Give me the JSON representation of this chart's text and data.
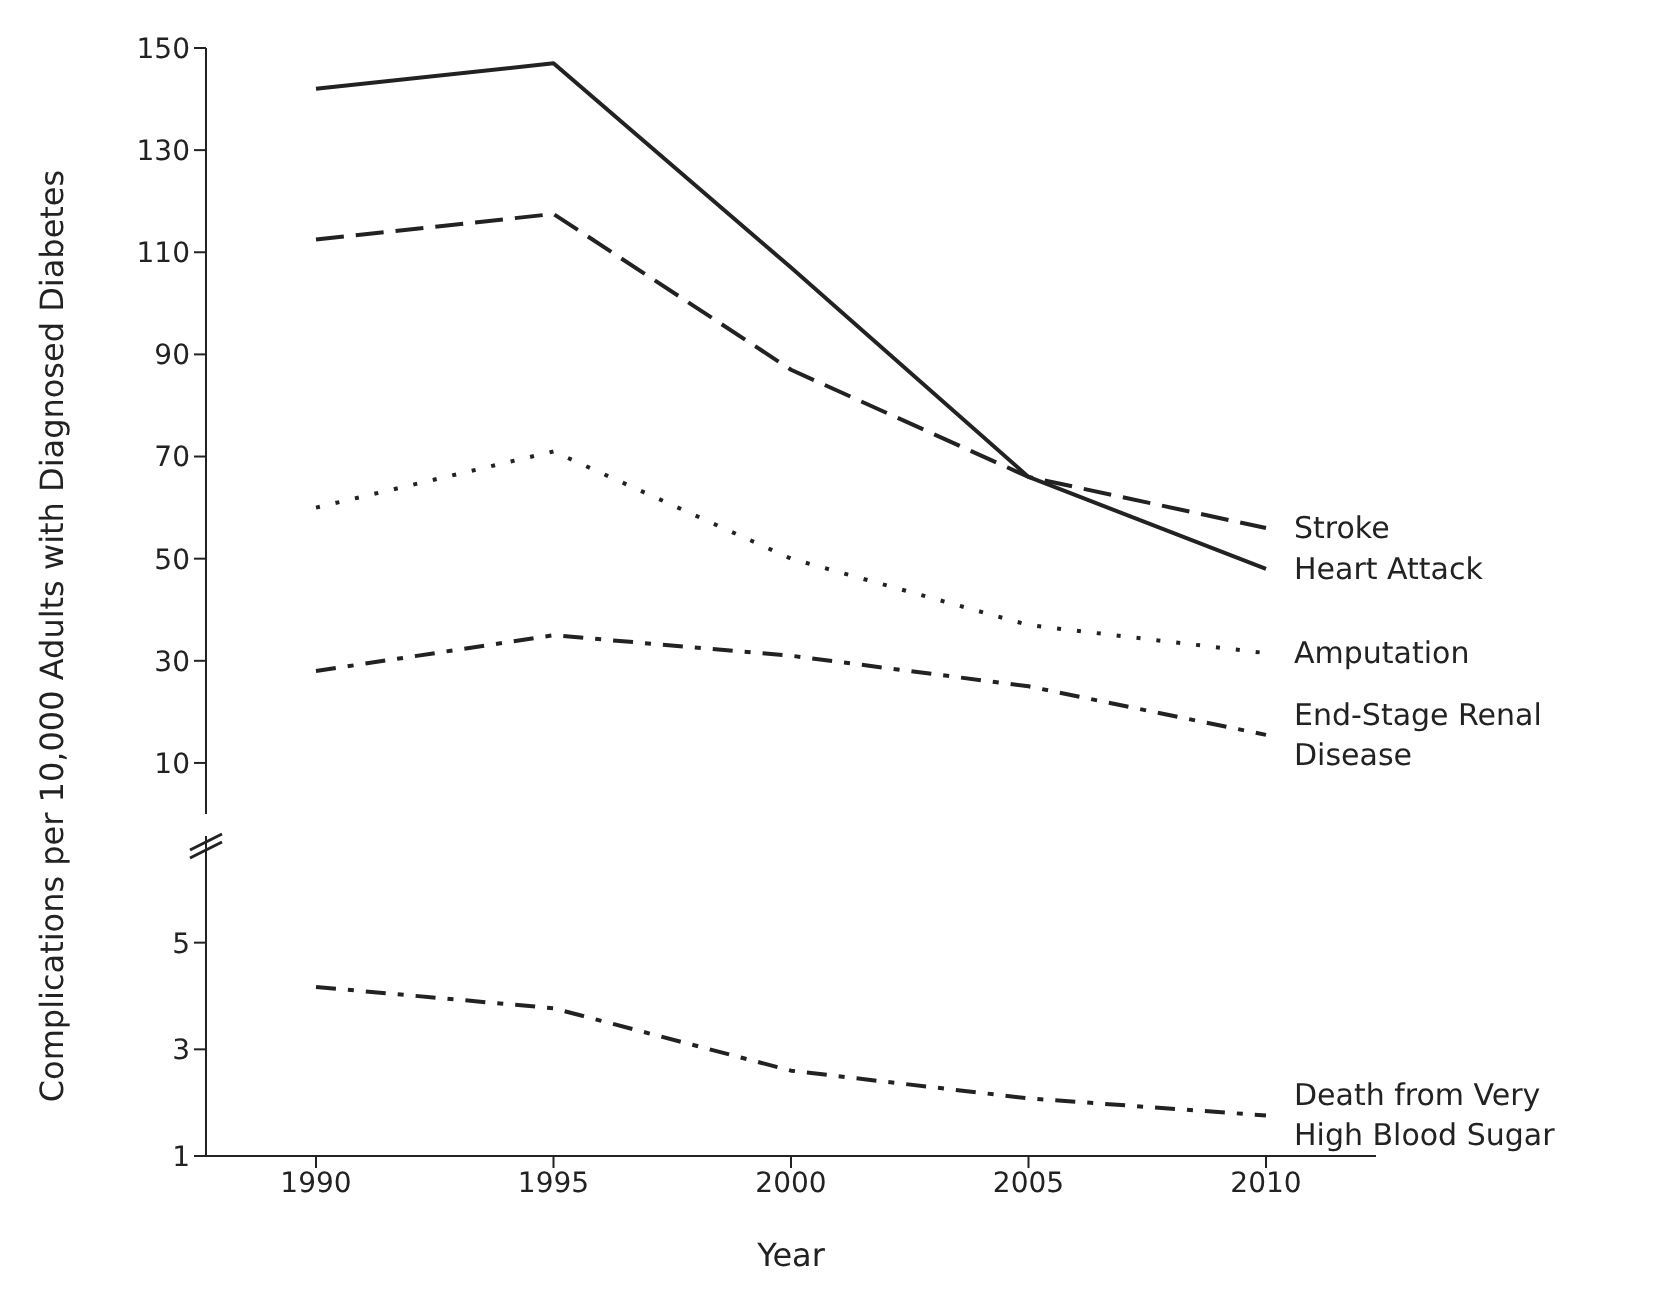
{
  "chart_data": [
    {
      "type": "line",
      "ylabel": "Complications per 10,000 Adults with Diagnosed Diabetes",
      "categories": [
        "1990",
        "1995",
        "2000",
        "2005",
        "2010"
      ],
      "ylim": [
        0,
        150
      ],
      "yticks": [
        10,
        30,
        50,
        70,
        90,
        110,
        130,
        150
      ],
      "tick_labels": "y",
      "series": [
        {
          "name": "Stroke",
          "color": "#222222",
          "line_style": "dashed",
          "values": [
            112.5,
            117.5,
            87,
            66,
            56
          ]
        },
        {
          "name": "Heart Attack",
          "color": "#222222",
          "line_style": "solid",
          "values": [
            142,
            147,
            107,
            66,
            48
          ]
        },
        {
          "name": "Amputation",
          "color": "#222222",
          "line_style": "dotted",
          "values": [
            60,
            71,
            50,
            37,
            31.5
          ]
        },
        {
          "name": "End-Stage Renal Disease",
          "color": "#222222",
          "line_style": "dashdot",
          "values": [
            28,
            35,
            31,
            25,
            15.5
          ]
        }
      ]
    },
    {
      "type": "line",
      "xlabel": "Year",
      "categories": [
        "1990",
        "1995",
        "2000",
        "2005",
        "2010"
      ],
      "ylim": [
        1,
        7
      ],
      "yticks": [
        1,
        3,
        5
      ],
      "series": [
        {
          "name": "Death from Very High Blood Sugar",
          "color": "#222222",
          "line_style": "dashdot",
          "values": [
            4.17,
            3.77,
            2.6,
            2.08,
            1.76
          ]
        }
      ]
    }
  ]
}
